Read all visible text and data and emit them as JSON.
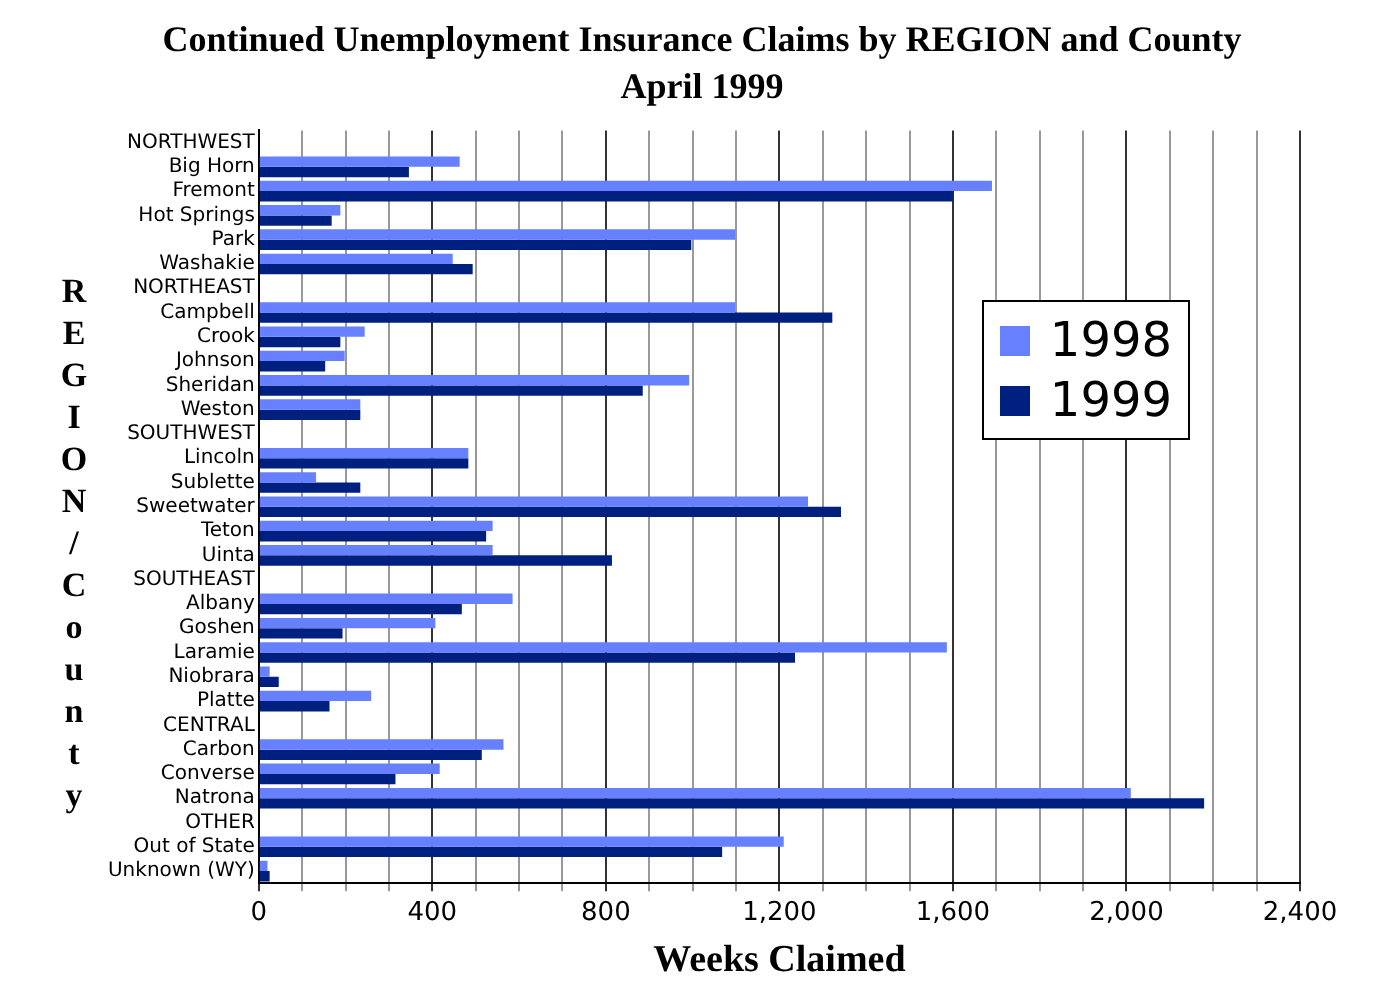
{
  "chart_data": {
    "type": "bar",
    "orientation": "horizontal",
    "title": "Continued Unemployment Insurance Claims by REGION and County",
    "subtitle": "April 1999",
    "xlabel": "Weeks Claimed",
    "ylabel": "REGION/County",
    "categories": [
      "NORTHWEST",
      "Big Horn",
      "Fremont",
      "Hot Springs",
      "Park",
      "Washakie",
      "NORTHEAST",
      "Campbell",
      "Crook",
      "Johnson",
      "Sheridan",
      "Weston",
      "SOUTHWEST",
      "Lincoln",
      "Sublette",
      "Sweetwater",
      "Teton",
      "Uinta",
      "SOUTHEAST",
      "Albany",
      "Goshen",
      "Laramie",
      "Niobrara",
      "Platte",
      "CENTRAL",
      "Carbon",
      "Converse",
      "Natrona",
      "OTHER",
      "Out of State",
      "Unknown (WY)"
    ],
    "series": [
      {
        "name": "1998",
        "color": "#6680ff",
        "values": [
          null,
          463,
          1690,
          188,
          1098,
          447,
          null,
          1098,
          244,
          198,
          992,
          234,
          null,
          483,
          132,
          1266,
          539,
          539,
          null,
          585,
          407,
          1586,
          25,
          259,
          null,
          564,
          417,
          2010,
          null,
          1210,
          20
        ]
      },
      {
        "name": "1999",
        "color": "#00207f",
        "values": [
          null,
          346,
          1600,
          168,
          997,
          493,
          null,
          1322,
          188,
          153,
          885,
          234,
          null,
          483,
          234,
          1342,
          524,
          814,
          null,
          468,
          193,
          1236,
          46,
          163,
          null,
          514,
          315,
          2179,
          null,
          1068,
          25
        ]
      }
    ],
    "xlim": [
      0,
      2400
    ],
    "xticks": [
      0,
      {
        "value": 100,
        "label": null
      },
      {
        "value": 200,
        "label": null
      },
      {
        "value": 300,
        "label": null
      },
      400,
      {
        "value": 500,
        "label": null
      },
      {
        "value": 600,
        "label": null
      },
      {
        "value": 700,
        "label": null
      },
      800,
      {
        "value": 900,
        "label": null
      },
      {
        "value": 1000,
        "label": null
      },
      {
        "value": 1100,
        "label": null
      },
      {
        "value": 1200,
        "label": "1,200"
      },
      {
        "value": 1300,
        "label": null
      },
      {
        "value": 1400,
        "label": null
      },
      {
        "value": 1500,
        "label": null
      },
      {
        "value": 1600,
        "label": "1,600"
      },
      {
        "value": 1700,
        "label": null
      },
      {
        "value": 1800,
        "label": null
      },
      {
        "value": 1900,
        "label": null
      },
      {
        "value": 2000,
        "label": "2,000"
      },
      {
        "value": 2100,
        "label": null
      },
      {
        "value": 2200,
        "label": null
      },
      {
        "value": 2300,
        "label": null
      },
      {
        "value": 2400,
        "label": "2,400"
      }
    ],
    "grid": "x",
    "legend": "right"
  }
}
